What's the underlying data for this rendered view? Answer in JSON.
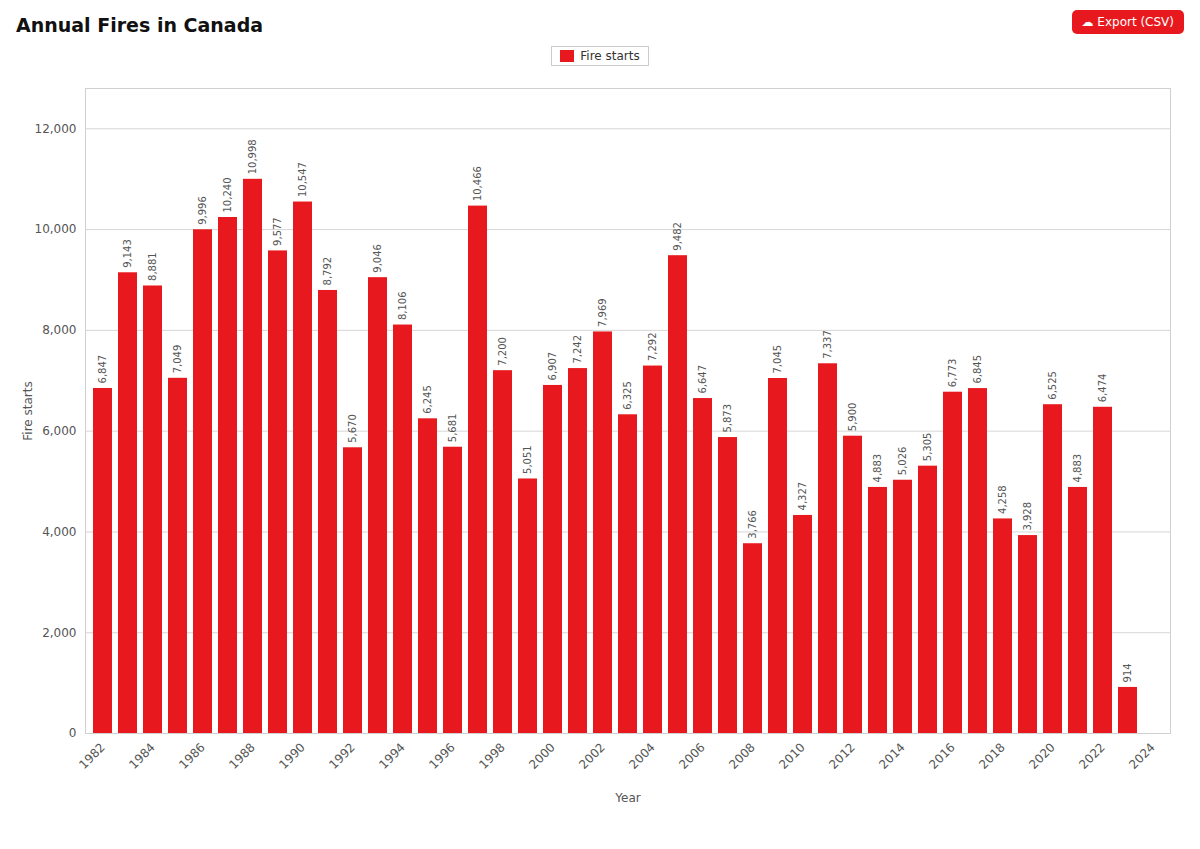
{
  "chart_data": {
    "type": "bar",
    "title": "Annual Fires in Canada",
    "xlabel": "Year",
    "ylabel": "Fire starts",
    "categories": [
      "1982",
      null,
      "1984",
      null,
      "1986",
      null,
      "1988",
      null,
      "1990",
      null,
      "1992",
      null,
      "1994",
      null,
      "1996",
      null,
      "1998",
      null,
      "2000",
      null,
      "2002",
      null,
      "2004",
      null,
      "2006",
      null,
      "2008",
      null,
      "2010",
      null,
      "2012",
      null,
      "2014",
      null,
      "2016",
      null,
      "2018",
      null,
      "2020",
      null,
      "2022",
      null,
      "2024"
    ],
    "series": [
      {
        "name": "Fire starts",
        "color": "#e8191e",
        "values": [
          6847,
          9143,
          8881,
          7049,
          9996,
          10240,
          10998,
          9577,
          10547,
          8792,
          5670,
          9046,
          8106,
          6245,
          5681,
          10466,
          7200,
          5051,
          6907,
          7242,
          7969,
          6325,
          7292,
          9482,
          6647,
          5873,
          3766,
          7045,
          4327,
          7337,
          5900,
          4883,
          5026,
          5305,
          6773,
          6845,
          4258,
          3928,
          6525,
          4883,
          6474,
          914,
          0
        ],
        "value_labels": [
          "6,847",
          "9,143",
          "8,881",
          "7,049",
          "9,996",
          "10,240",
          "10,998",
          "9,577",
          "10,547",
          "8,792",
          "5,670",
          "9,046",
          "8,106",
          "6,245",
          "5,681",
          "10,466",
          "7,200",
          "5,051",
          "6,907",
          "7,242",
          "7,969",
          "6,325",
          "7,292",
          "9,482",
          "6,647",
          "5,873",
          "3,766",
          "7,045",
          "4,327",
          "7,337",
          "5,900",
          "4,883",
          "5,026",
          "5,305",
          "6,773",
          "6,845",
          "4,258",
          "3,928",
          "6,525",
          "4,883",
          "6,474",
          "914",
          null
        ]
      }
    ],
    "ylim": [
      0,
      12800
    ],
    "yticks": [
      0,
      {
        "value": 2000,
        "label": "2,000"
      },
      {
        "value": 4000,
        "label": "4,000"
      },
      {
        "value": 6000,
        "label": "6,000"
      },
      {
        "value": 8000,
        "label": "8,000"
      },
      {
        "value": 10000,
        "label": "10,000"
      },
      {
        "value": 12000,
        "label": "12,000"
      }
    ],
    "grid": true,
    "legend": "top",
    "data_labels": true,
    "annotations": [
      "☁  Export (CSV)"
    ]
  }
}
